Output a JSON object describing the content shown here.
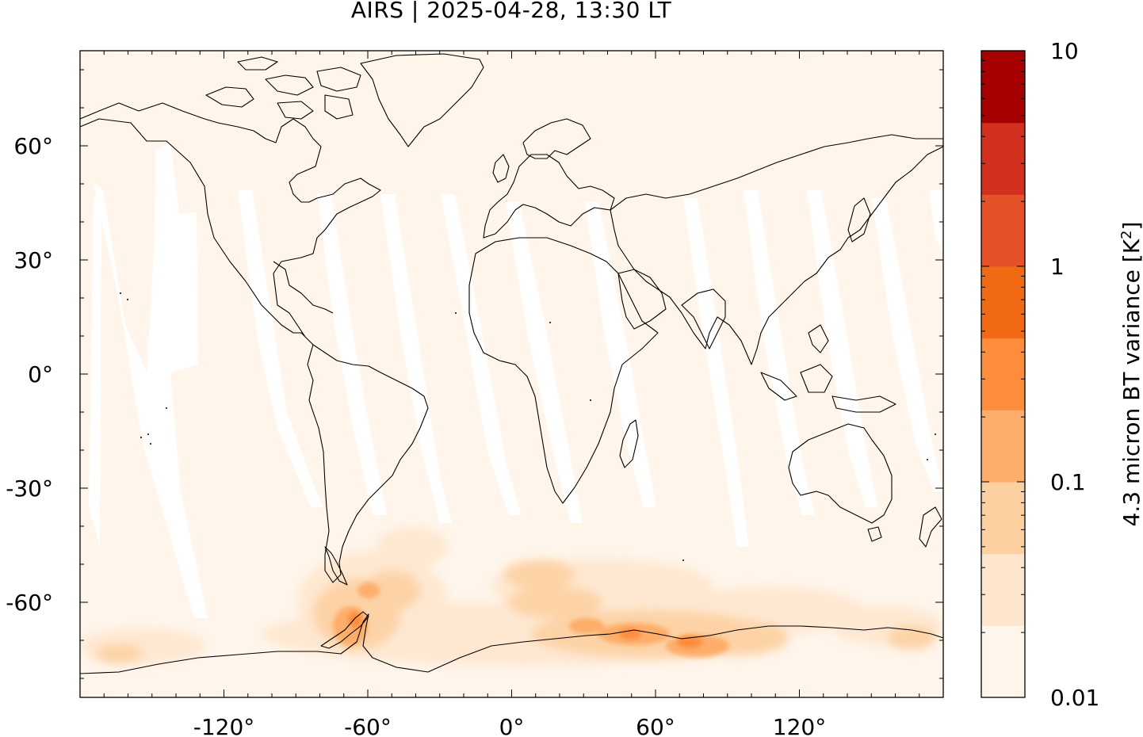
{
  "title": "AIRS | 2025-04-28, 13:30 LT",
  "map": {
    "projection": "equirectangular",
    "lon_range": [
      -180,
      180
    ],
    "lat_range": [
      -85,
      85
    ],
    "x_ticks": [
      {
        "value": -120,
        "label": "-120°"
      },
      {
        "value": -60,
        "label": "-60°"
      },
      {
        "value": 0,
        "label": "0°"
      },
      {
        "value": 60,
        "label": "60°"
      },
      {
        "value": 120,
        "label": "120°"
      }
    ],
    "y_ticks": [
      {
        "value": 60,
        "label": "60°"
      },
      {
        "value": 30,
        "label": "30°"
      },
      {
        "value": 0,
        "label": "0°"
      },
      {
        "value": -30,
        "label": "-30°"
      },
      {
        "value": -60,
        "label": "-60°"
      }
    ],
    "background_color": "#fff5eb",
    "coastline_color": "#000000"
  },
  "colorbar": {
    "label_text": "4.3 micron BT variance [K",
    "label_sup": "2",
    "label_end": "]",
    "scale": "log",
    "range": [
      0.01,
      10
    ],
    "ticks": [
      {
        "value": 10,
        "label": "10"
      },
      {
        "value": 1,
        "label": "1"
      },
      {
        "value": 0.1,
        "label": "0.1"
      },
      {
        "value": 0.01,
        "label": "0.01"
      }
    ],
    "colors": [
      "#fff5eb",
      "#fee6ce",
      "#fdd0a2",
      "#fdae6b",
      "#fd8d3c",
      "#f16913",
      "#e5522a",
      "#d32f1e",
      "#a60000"
    ]
  },
  "chart_data": {
    "type": "heatmap",
    "title": "AIRS | 2025-04-28, 13:30 LT",
    "xlabel": "",
    "ylabel": "",
    "colorbar_label": "4.3 micron BT variance [K2]",
    "xlim": [
      -180,
      180
    ],
    "ylim": [
      -85,
      85
    ],
    "color_scale": "log",
    "color_range": [
      0.01,
      10
    ],
    "orbit_gaps_longitude_at_equator": [
      -155,
      -118,
      -86,
      -52,
      -18,
      15,
      47,
      81,
      114,
      150
    ],
    "hotspots": [
      {
        "lon": -63,
        "lat": -66,
        "value": 0.5
      },
      {
        "lon": -58,
        "lat": -58,
        "value": 0.2
      },
      {
        "lon": 50,
        "lat": -68,
        "value": 0.6
      },
      {
        "lon": 72,
        "lat": -69,
        "value": 0.8
      },
      {
        "lon": 30,
        "lat": -60,
        "value": 0.15
      },
      {
        "lon": 90,
        "lat": -62,
        "value": 0.15
      },
      {
        "lon": -165,
        "lat": -73,
        "value": 0.1
      },
      {
        "lon": 150,
        "lat": -65,
        "value": 0.08
      }
    ]
  }
}
